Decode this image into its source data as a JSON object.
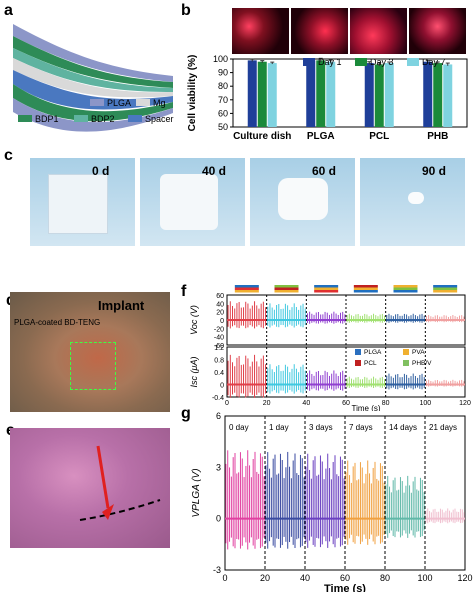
{
  "panels": {
    "a": {
      "label": "a",
      "legend": [
        {
          "name": "PLGA",
          "color": "#8c96c8"
        },
        {
          "name": "Mg",
          "color": "#d9d9d9"
        },
        {
          "name": "BDP1",
          "color": "#2e8b57"
        },
        {
          "name": "BDP2",
          "color": "#5fb3a0"
        },
        {
          "name": "Spacer",
          "color": "#4a78c0"
        }
      ]
    },
    "b": {
      "label": "b"
    },
    "c": {
      "label": "c",
      "times": [
        "0 d",
        "40 d",
        "60 d",
        "90 d"
      ]
    },
    "d": {
      "label": "d",
      "title": "Implant",
      "caption": "PLGA-coated BD-TENG"
    },
    "e": {
      "label": "e"
    },
    "f": {
      "label": "f"
    },
    "g": {
      "label": "g"
    }
  },
  "chart_data": [
    {
      "id": "b",
      "type": "bar",
      "ylabel": "Cell viability (%)",
      "ylim": [
        50,
        100
      ],
      "yticks": [
        50,
        60,
        70,
        80,
        90,
        100
      ],
      "categories": [
        "Culture dish",
        "PLGA",
        "PCL",
        "PHB"
      ],
      "legend_position": "top-right",
      "series": [
        {
          "name": "Day 1",
          "color": "#1f3f99",
          "values": [
            99,
            99,
            97,
            98
          ],
          "err": [
            0.8,
            1.0,
            1.0,
            0.8
          ]
        },
        {
          "name": "Day 3",
          "color": "#1b8a3a",
          "values": [
            98,
            99,
            96,
            97
          ],
          "err": [
            0.8,
            1.5,
            1.2,
            0.8
          ]
        },
        {
          "name": "Day 7",
          "color": "#7fd3e0",
          "values": [
            97,
            98,
            97,
            96
          ],
          "err": [
            0.7,
            1.2,
            0.8,
            1.0
          ]
        }
      ]
    },
    {
      "id": "f",
      "type": "line",
      "xlabel": "Time (s)",
      "xlim": [
        0,
        120
      ],
      "xticks": [
        0,
        20,
        40,
        60,
        80,
        100,
        120
      ],
      "top": {
        "ylabel": "Voc (V)",
        "ylim": [
          -60,
          60
        ],
        "yticks": [
          -60,
          -40,
          -20,
          0,
          20,
          40,
          60
        ],
        "segments": [
          {
            "x": [
              0,
              20
            ],
            "amp": 45,
            "color": "#e0404a"
          },
          {
            "x": [
              20,
              40
            ],
            "amp": 40,
            "color": "#40c8e0"
          },
          {
            "x": [
              40,
              60
            ],
            "amp": 20,
            "color": "#9040d0"
          },
          {
            "x": [
              60,
              80
            ],
            "amp": 15,
            "color": "#a0e070"
          },
          {
            "x": [
              80,
              100
            ],
            "amp": 15,
            "color": "#3060a0"
          },
          {
            "x": [
              100,
              120
            ],
            "amp": 12,
            "color": "#f0a0a0"
          }
        ]
      },
      "bottom": {
        "ylabel": "Isc (μA)",
        "ylim": [
          -0.4,
          1.2
        ],
        "yticks": [
          -0.4,
          0.0,
          0.4,
          0.8,
          1.2
        ],
        "segments": [
          {
            "x": [
              0,
              20
            ],
            "amp": 0.95,
            "color": "#e0404a"
          },
          {
            "x": [
              20,
              40
            ],
            "amp": 0.65,
            "color": "#40c8e0"
          },
          {
            "x": [
              40,
              60
            ],
            "amp": 0.45,
            "color": "#9040d0"
          },
          {
            "x": [
              60,
              80
            ],
            "amp": 0.25,
            "color": "#a0e070"
          },
          {
            "x": [
              80,
              100
            ],
            "amp": 0.35,
            "color": "#3060a0"
          },
          {
            "x": [
              100,
              120
            ],
            "amp": 0.15,
            "color": "#f0a0a0"
          }
        ]
      },
      "legend": [
        {
          "name": "PLGA",
          "color": "#2a6fbf"
        },
        {
          "name": "PVA",
          "color": "#f0b030"
        },
        {
          "name": "PCL",
          "color": "#c02020"
        },
        {
          "name": "PHB/V",
          "color": "#80c060"
        }
      ],
      "tags": [
        [
          "#1f6fc0",
          "#e03030",
          "#f0b030"
        ],
        [
          "#80c040",
          "#c02020",
          "#f0b030"
        ],
        [
          "#1f6fc0",
          "#f0b030",
          "#e03030"
        ],
        [
          "#c02020",
          "#f0b030",
          "#1f6fc0"
        ],
        [
          "#f0b030",
          "#80c040",
          "#1f6fc0"
        ],
        [
          "#1f6fc0",
          "#80c040",
          "#f0b030"
        ]
      ]
    },
    {
      "id": "g",
      "type": "line",
      "xlabel": "Time (s)",
      "ylabel": "VPLGA (V)",
      "xlim": [
        0,
        120
      ],
      "ylim": [
        -3,
        6
      ],
      "xticks": [
        0,
        20,
        40,
        60,
        80,
        100,
        120
      ],
      "yticks": [
        -3,
        0,
        3,
        6
      ],
      "segments": [
        {
          "label": "0 day",
          "x": [
            0,
            20
          ],
          "amp": 4.0,
          "color": "#e040a0"
        },
        {
          "label": "1 day",
          "x": [
            20,
            40
          ],
          "amp": 3.9,
          "color": "#3a4aa0"
        },
        {
          "label": "3 days",
          "x": [
            40,
            60
          ],
          "amp": 3.8,
          "color": "#6a40c0"
        },
        {
          "label": "7 days",
          "x": [
            60,
            80
          ],
          "amp": 3.4,
          "color": "#f0a040"
        },
        {
          "label": "14 days",
          "x": [
            80,
            100
          ],
          "amp": 2.5,
          "color": "#60b8a8"
        },
        {
          "label": "21 days",
          "x": [
            100,
            120
          ],
          "amp": 0.6,
          "color": "#f0c0d0"
        }
      ]
    }
  ]
}
